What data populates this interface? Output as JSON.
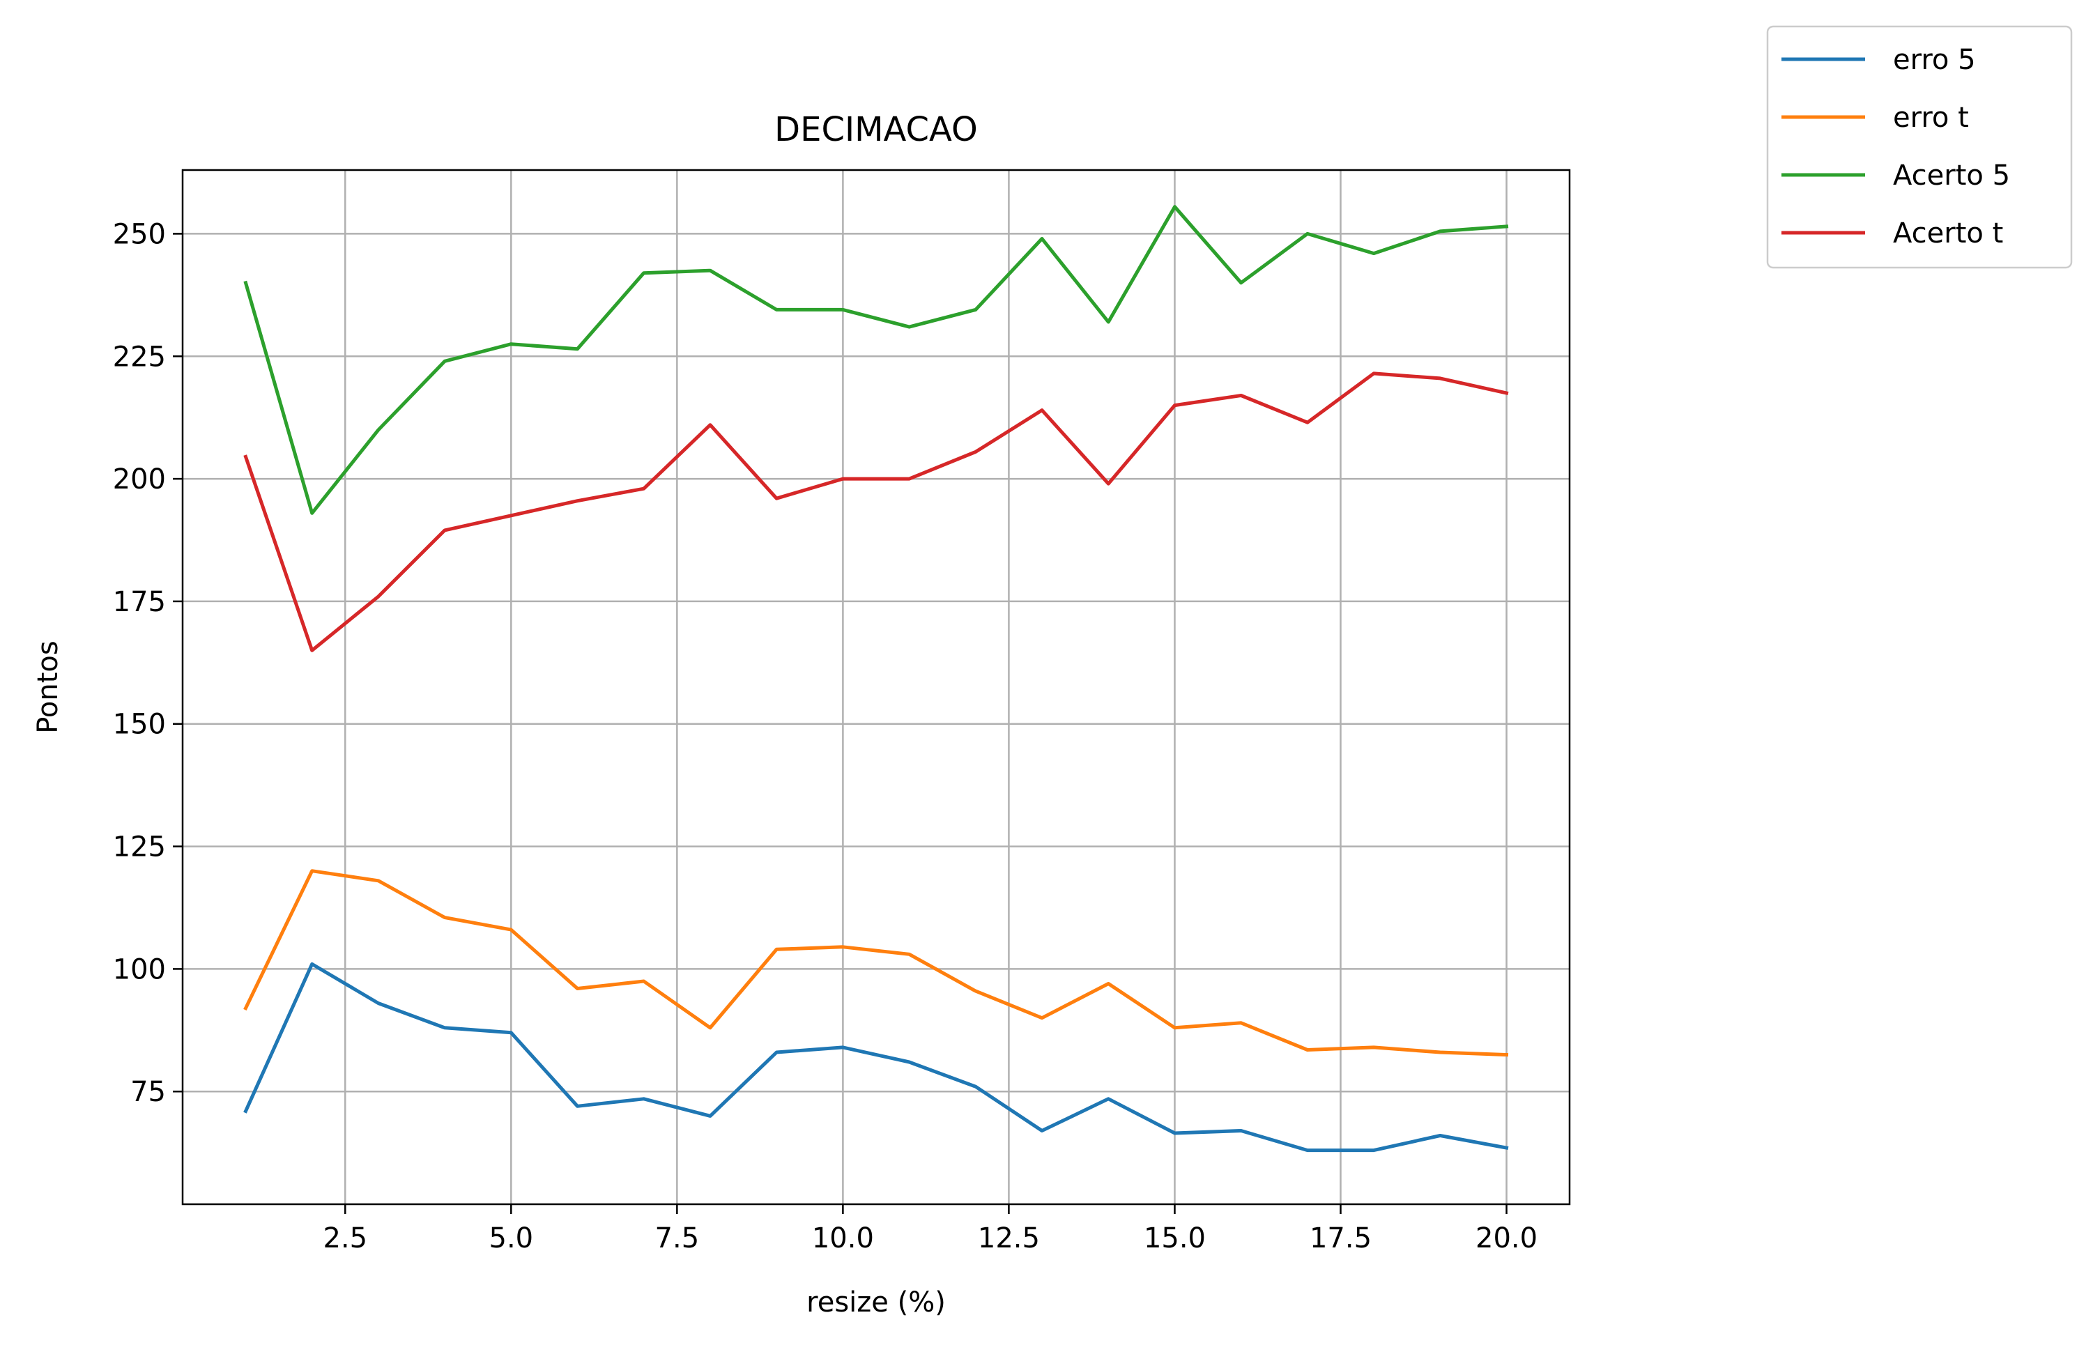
{
  "chart_data": {
    "type": "line",
    "title": "DECIMACAO",
    "xlabel": "resize (%)",
    "ylabel": "Pontos",
    "xlim": [
      0.05,
      20.95
    ],
    "ylim": [
      52,
      263
    ],
    "xticks": [
      2.5,
      5.0,
      7.5,
      10.0,
      12.5,
      15.0,
      17.5,
      20.0
    ],
    "xtick_labels": [
      "2.5",
      "5.0",
      "7.5",
      "10.0",
      "12.5",
      "15.0",
      "17.5",
      "20.0"
    ],
    "yticks": [
      75,
      100,
      125,
      150,
      175,
      200,
      225,
      250
    ],
    "ytick_labels": [
      "75",
      "100",
      "125",
      "150",
      "175",
      "200",
      "225",
      "250"
    ],
    "grid": true,
    "legend_position": "outside-top-right",
    "x": [
      1,
      2,
      3,
      4,
      5,
      6,
      7,
      8,
      9,
      10,
      11,
      12,
      13,
      14,
      15,
      16,
      17,
      18,
      19,
      20
    ],
    "series": [
      {
        "name": "erro 5",
        "color": "#1f77b4",
        "values": [
          71,
          101,
          93,
          88,
          87,
          72,
          73.5,
          70,
          83,
          84,
          81,
          76,
          67,
          73.5,
          66.5,
          67,
          63,
          63,
          66,
          63.5
        ]
      },
      {
        "name": "erro t",
        "color": "#ff7f0e",
        "values": [
          92,
          120,
          118,
          110.5,
          108,
          96,
          97.5,
          88,
          104,
          104.5,
          103,
          95.5,
          90,
          97,
          88,
          89,
          83.5,
          84,
          83,
          82.5
        ]
      },
      {
        "name": "Acerto 5",
        "color": "#2ca02c",
        "values": [
          240,
          193,
          210,
          224,
          227.5,
          226.5,
          242,
          242.5,
          234.5,
          234.5,
          231,
          234.5,
          249,
          232,
          255.5,
          240,
          250,
          246,
          250.5,
          251.5
        ]
      },
      {
        "name": "Acerto t",
        "color": "#d62728",
        "values": [
          204.5,
          165,
          176,
          189.5,
          192.5,
          195.5,
          198,
          211,
          196,
          200,
          200,
          205.5,
          214,
          199,
          215,
          217,
          211.5,
          221.5,
          220.5,
          217.5
        ]
      }
    ]
  }
}
